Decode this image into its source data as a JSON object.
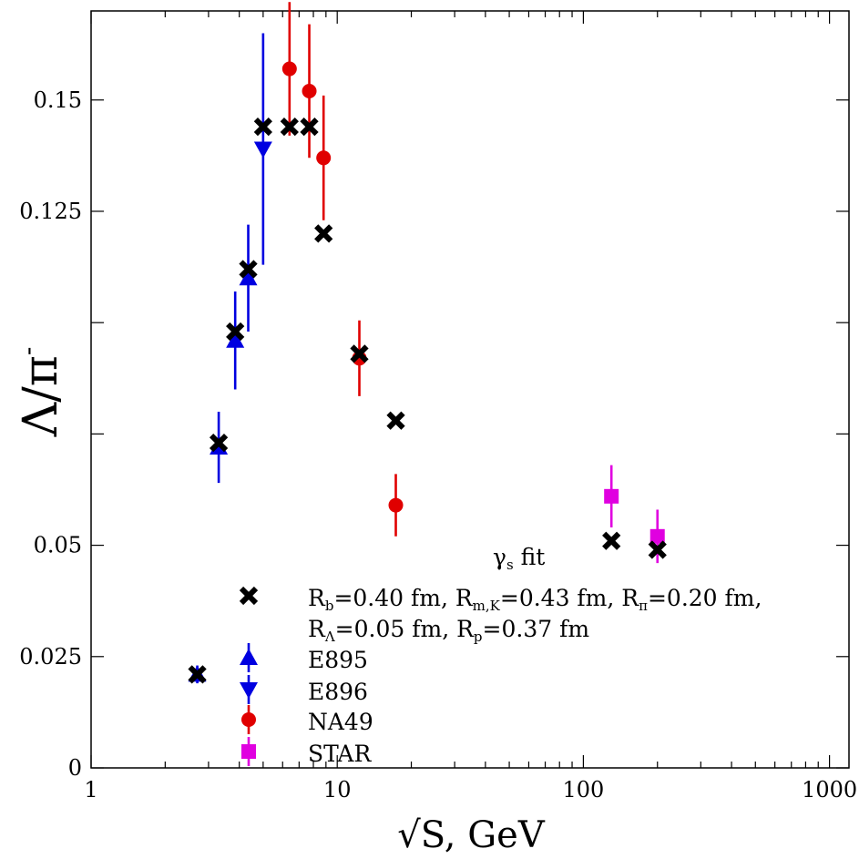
{
  "chart_data": {
    "type": "scatter",
    "x_scale": "log",
    "xlim": [
      1,
      1200
    ],
    "ylim": [
      0,
      0.17
    ],
    "xlabel": "√S, GeV",
    "ylabel_main": "Λ/π",
    "ylabel_sup": "-",
    "x_ticks": [
      {
        "value": 1,
        "label": "1"
      },
      {
        "value": 10,
        "label": "10"
      },
      {
        "value": 100,
        "label": "100"
      },
      {
        "value": 1000,
        "label": "1000"
      }
    ],
    "y_ticks": [
      {
        "value": 0,
        "label": "0"
      },
      {
        "value": 0.025,
        "label": "0.025"
      },
      {
        "value": 0.05,
        "label": "0.05"
      },
      {
        "value": 0.075,
        "label": ""
      },
      {
        "value": 0.1,
        "label": ""
      },
      {
        "value": 0.125,
        "label": "0.125"
      },
      {
        "value": 0.15,
        "label": "0.15"
      }
    ],
    "series": [
      {
        "name": "fit",
        "marker": "x",
        "color": "#000000",
        "points": [
          {
            "x": 2.7,
            "y": 0.021
          },
          {
            "x": 3.3,
            "y": 0.073
          },
          {
            "x": 3.85,
            "y": 0.098
          },
          {
            "x": 4.35,
            "y": 0.112
          },
          {
            "x": 5.0,
            "y": 0.144
          },
          {
            "x": 6.4,
            "y": 0.144
          },
          {
            "x": 7.7,
            "y": 0.144
          },
          {
            "x": 8.8,
            "y": 0.12
          },
          {
            "x": 12.3,
            "y": 0.093
          },
          {
            "x": 17.3,
            "y": 0.078
          },
          {
            "x": 130,
            "y": 0.051
          },
          {
            "x": 200,
            "y": 0.049
          }
        ]
      },
      {
        "name": "E895",
        "marker": "triangle-up",
        "color": "#0000e0",
        "points": [
          {
            "x": 2.7,
            "y": 0.021,
            "err": 0.002
          },
          {
            "x": 3.3,
            "y": 0.072,
            "err": 0.008
          },
          {
            "x": 3.85,
            "y": 0.096,
            "err": 0.011
          },
          {
            "x": 4.35,
            "y": 0.11,
            "err": 0.012
          }
        ]
      },
      {
        "name": "E896",
        "marker": "triangle-down",
        "color": "#0000e0",
        "points": [
          {
            "x": 5.0,
            "y": 0.139,
            "err": 0.026
          }
        ]
      },
      {
        "name": "NA49",
        "marker": "circle",
        "color": "#e00000",
        "points": [
          {
            "x": 6.4,
            "y": 0.157,
            "err": 0.015
          },
          {
            "x": 7.7,
            "y": 0.152,
            "err": 0.015
          },
          {
            "x": 8.8,
            "y": 0.137,
            "err": 0.014
          },
          {
            "x": 12.3,
            "y": 0.092,
            "err": 0.0085
          },
          {
            "x": 17.3,
            "y": 0.059,
            "err": 0.007
          }
        ]
      },
      {
        "name": "STAR",
        "marker": "square",
        "color": "#e000e0",
        "points": [
          {
            "x": 130,
            "y": 0.061,
            "err": 0.007
          },
          {
            "x": 200,
            "y": 0.052,
            "err": 0.006
          }
        ]
      }
    ],
    "legend": {
      "placement": "bottom-right",
      "title_main": "γ",
      "title_sub": "s",
      "title_rest": " fit",
      "entries": [
        {
          "marker": "x",
          "color": "#000000",
          "line1": [
            {
              "t": "R",
              "s": false
            },
            {
              "t": "b",
              "s": true
            },
            {
              "t": "=0.40 fm, R",
              "s": false
            },
            {
              "t": "m,K",
              "s": true
            },
            {
              "t": "=0.43 fm, R",
              "s": false
            },
            {
              "t": "π",
              "s": true
            },
            {
              "t": "=0.20 fm,",
              "s": false
            }
          ],
          "line2": [
            {
              "t": "R",
              "s": false
            },
            {
              "t": "Λ",
              "s": true
            },
            {
              "t": "=0.05 fm, R",
              "s": false
            },
            {
              "t": "p",
              "s": true
            },
            {
              "t": "=0.37 fm",
              "s": false
            }
          ]
        },
        {
          "marker": "triangle-up",
          "color": "#0000e0",
          "label": "E895"
        },
        {
          "marker": "triangle-down",
          "color": "#0000e0",
          "label": "E896"
        },
        {
          "marker": "circle",
          "color": "#e00000",
          "label": "NA49"
        },
        {
          "marker": "square",
          "color": "#e000e0",
          "label": "STAR"
        }
      ]
    }
  }
}
